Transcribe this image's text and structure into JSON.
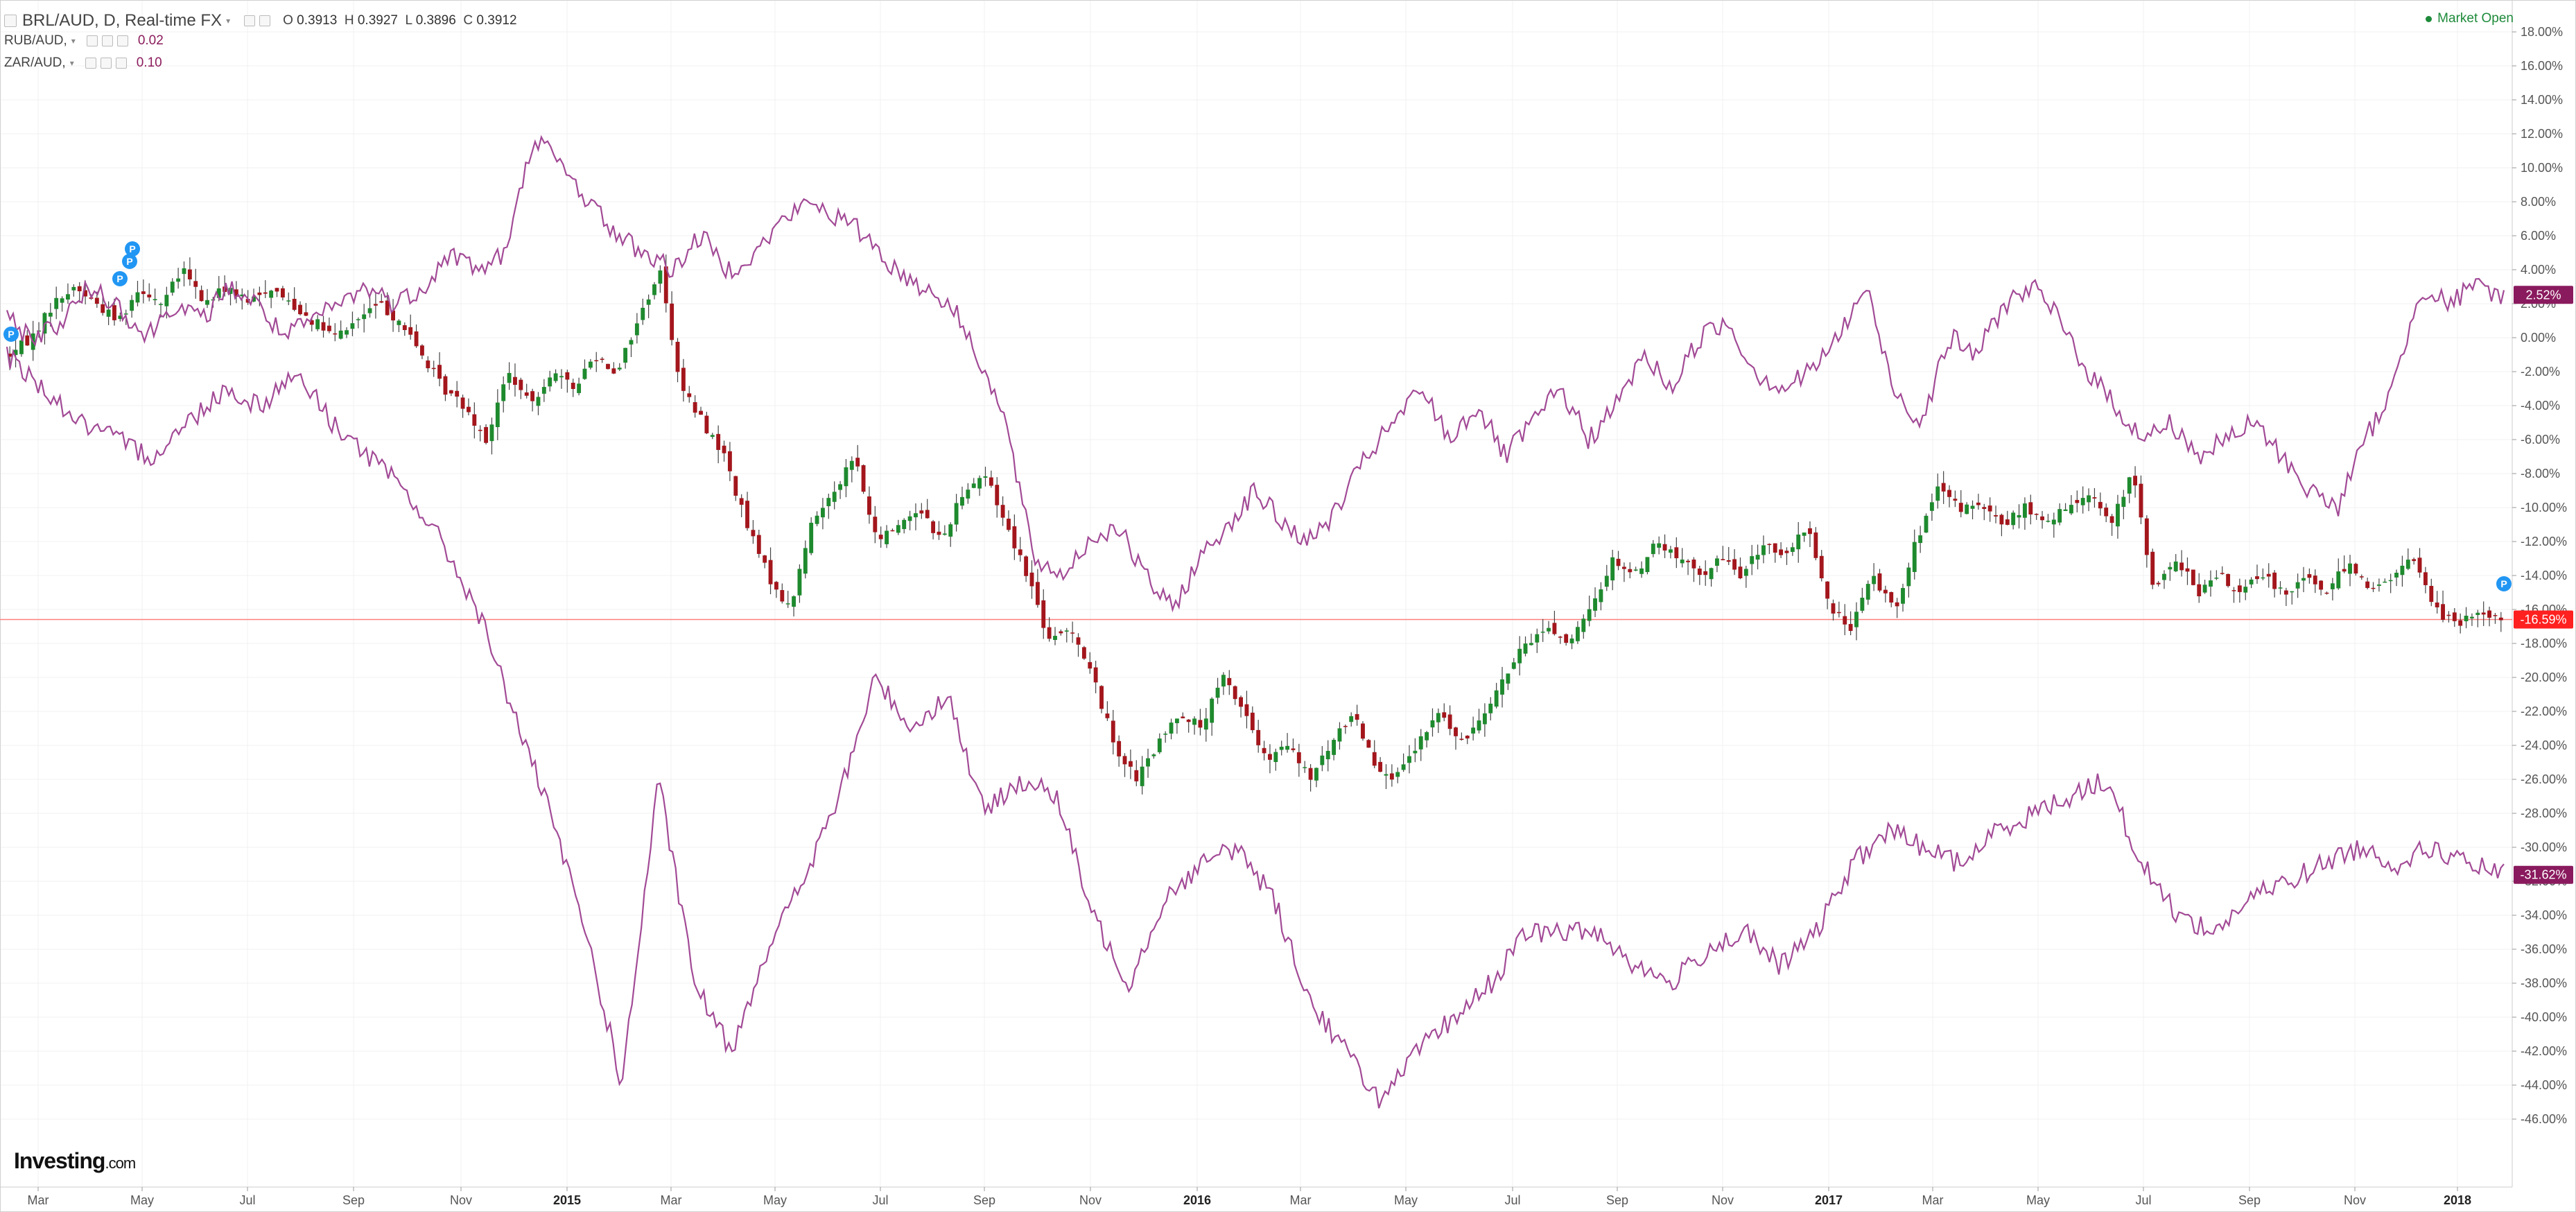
{
  "header": {
    "main_symbol": "BRL/AUD, D, Real-time FX",
    "ohlc": {
      "o_label": "O",
      "o": "0.3913",
      "h_label": "H",
      "h": "0.3927",
      "l_label": "L",
      "l": "0.3896",
      "c_label": "C",
      "c": "0.3912"
    },
    "compare": [
      {
        "symbol": "RUB/AUD,",
        "value": "0.02"
      },
      {
        "symbol": "ZAR/AUD,",
        "value": "0.10"
      }
    ],
    "market_status": "Market Open"
  },
  "logo": {
    "bold": "Investing",
    "suffix": ".com"
  },
  "colors": {
    "up": "#1e8a2e",
    "down": "#a3161c",
    "compare": "#a24a96",
    "last_red": "#ff2020",
    "badge_purple": "#8a1a5e",
    "wick": "#444444"
  },
  "icons": [
    "collapse-square-icon",
    "eye-icon",
    "gear-icon",
    "close-icon",
    "dropdown-caret-icon",
    "p-marker-icon"
  ],
  "chart_data": {
    "type": "line",
    "description_free": true,
    "x_tick_labels": [
      "Mar",
      "May",
      "Jul",
      "Sep",
      "Nov",
      "2015",
      "Mar",
      "May",
      "Jul",
      "Sep",
      "Nov",
      "2016",
      "Mar",
      "May",
      "Jul",
      "Sep",
      "Nov",
      "2017",
      "Mar",
      "May",
      "Jul",
      "Sep",
      "Nov",
      "2018"
    ],
    "x_tick_bold": [
      "2015",
      "2016",
      "2017",
      "2018"
    ],
    "y_unit": "%",
    "ylim": [
      -47,
      19
    ],
    "y_ticks": [
      18,
      16,
      14,
      12,
      10,
      8,
      6,
      4,
      2,
      0,
      -2,
      -4,
      -6,
      -8,
      -10,
      -12,
      -14,
      -16,
      -18,
      -20,
      -22,
      -24,
      -26,
      -28,
      -30,
      -32,
      -34,
      -36,
      -38,
      -40,
      -42,
      -44,
      -46
    ],
    "y_tick_labels": [
      "18.00%",
      "16.00%",
      "14.00%",
      "12.00%",
      "10.00%",
      "8.00%",
      "6.00%",
      "4.00%",
      "2.00%",
      "0.00%",
      "-2.00%",
      "-4.00%",
      "-6.00%",
      "-8.00%",
      "-10.00%",
      "-12.00%",
      "-14.00%",
      "-16.00%",
      "-18.00%",
      "-20.00%",
      "-22.00%",
      "-24.00%",
      "-26.00%",
      "-28.00%",
      "-30.00%",
      "-32.00%",
      "-34.00%",
      "-36.00%",
      "-38.00%",
      "-40.00%",
      "-42.00%",
      "-44.00%",
      "-46.00%"
    ],
    "grid": true,
    "price_line_value": -16.59,
    "series": [
      {
        "style": "candlestick",
        "last_label": "-16.59%",
        "anchors": [
          [
            0,
            -1
          ],
          [
            1,
            0
          ],
          [
            2,
            2
          ],
          [
            3,
            3
          ],
          [
            4,
            2
          ],
          [
            5,
            1
          ],
          [
            6,
            3
          ],
          [
            7,
            2
          ],
          [
            8,
            4
          ],
          [
            9,
            2
          ],
          [
            10,
            3
          ],
          [
            11,
            2
          ],
          [
            12,
            3
          ],
          [
            13,
            2
          ],
          [
            14,
            1
          ],
          [
            15,
            0
          ],
          [
            16,
            1
          ],
          [
            17,
            2
          ],
          [
            18,
            1
          ],
          [
            19,
            -1
          ],
          [
            20,
            -3
          ],
          [
            21,
            -4
          ],
          [
            22,
            -6
          ],
          [
            23,
            -2
          ],
          [
            24,
            -4
          ],
          [
            25,
            -2
          ],
          [
            26,
            -3
          ],
          [
            27,
            -1
          ],
          [
            28,
            -2
          ],
          [
            29,
            1
          ],
          [
            30,
            4
          ],
          [
            31,
            -3
          ],
          [
            32,
            -5
          ],
          [
            33,
            -7
          ],
          [
            34,
            -11
          ],
          [
            35,
            -14
          ],
          [
            36,
            -16
          ],
          [
            37,
            -11
          ],
          [
            38,
            -9
          ],
          [
            39,
            -7
          ],
          [
            40,
            -12
          ],
          [
            41,
            -11
          ],
          [
            42,
            -10
          ],
          [
            43,
            -12
          ],
          [
            44,
            -9
          ],
          [
            45,
            -8
          ],
          [
            46,
            -11
          ],
          [
            47,
            -14
          ],
          [
            48,
            -18
          ],
          [
            49,
            -17
          ],
          [
            50,
            -20
          ],
          [
            51,
            -24
          ],
          [
            52,
            -26
          ],
          [
            53,
            -24
          ],
          [
            54,
            -22
          ],
          [
            55,
            -23
          ],
          [
            56,
            -20
          ],
          [
            57,
            -22
          ],
          [
            58,
            -25
          ],
          [
            59,
            -24
          ],
          [
            60,
            -26
          ],
          [
            61,
            -24
          ],
          [
            62,
            -22
          ],
          [
            63,
            -25
          ],
          [
            64,
            -26
          ],
          [
            65,
            -24
          ],
          [
            66,
            -22
          ],
          [
            67,
            -24
          ],
          [
            68,
            -22
          ],
          [
            69,
            -20
          ],
          [
            70,
            -18
          ],
          [
            71,
            -17
          ],
          [
            72,
            -18
          ],
          [
            73,
            -16
          ],
          [
            74,
            -13
          ],
          [
            75,
            -14
          ],
          [
            76,
            -12
          ],
          [
            77,
            -13
          ],
          [
            78,
            -14
          ],
          [
            79,
            -13
          ],
          [
            80,
            -14
          ],
          [
            81,
            -12
          ],
          [
            82,
            -13
          ],
          [
            83,
            -11
          ],
          [
            84,
            -16
          ],
          [
            85,
            -17
          ],
          [
            86,
            -14
          ],
          [
            87,
            -16
          ],
          [
            88,
            -12
          ],
          [
            89,
            -9
          ],
          [
            90,
            -10
          ],
          [
            91,
            -10
          ],
          [
            92,
            -11
          ],
          [
            93,
            -10
          ],
          [
            94,
            -11
          ],
          [
            95,
            -10
          ],
          [
            96,
            -9
          ],
          [
            97,
            -11
          ],
          [
            98,
            -8
          ],
          [
            99,
            -15
          ],
          [
            100,
            -13
          ],
          [
            101,
            -15
          ],
          [
            102,
            -14
          ],
          [
            103,
            -15
          ],
          [
            104,
            -14
          ],
          [
            105,
            -15
          ],
          [
            106,
            -14
          ],
          [
            107,
            -15
          ],
          [
            108,
            -13
          ],
          [
            109,
            -15
          ],
          [
            110,
            -14
          ],
          [
            111,
            -13
          ],
          [
            112,
            -16
          ],
          [
            113,
            -17
          ],
          [
            114,
            -16
          ],
          [
            115,
            -16.6
          ]
        ]
      },
      {
        "style": "line",
        "last_label": "2.52%",
        "anchors": [
          [
            0,
            1
          ],
          [
            1,
            0
          ],
          [
            2,
            1
          ],
          [
            3,
            3
          ],
          [
            4,
            2
          ],
          [
            5,
            0
          ],
          [
            6,
            2
          ],
          [
            7,
            1
          ],
          [
            8,
            3
          ],
          [
            9,
            2
          ],
          [
            10,
            0
          ],
          [
            11,
            1
          ],
          [
            12,
            2
          ],
          [
            13,
            3
          ],
          [
            14,
            2
          ],
          [
            15,
            3
          ],
          [
            16,
            5
          ],
          [
            17,
            4
          ],
          [
            18,
            5
          ],
          [
            19,
            12
          ],
          [
            20,
            10
          ],
          [
            21,
            8
          ],
          [
            22,
            6
          ],
          [
            23,
            5
          ],
          [
            24,
            4
          ],
          [
            25,
            6
          ],
          [
            26,
            4
          ],
          [
            27,
            5
          ],
          [
            28,
            7
          ],
          [
            29,
            8
          ],
          [
            30,
            7
          ],
          [
            31,
            6
          ],
          [
            32,
            4
          ],
          [
            33,
            3
          ],
          [
            34,
            2
          ],
          [
            35,
            -1
          ],
          [
            36,
            -5
          ],
          [
            37,
            -13
          ],
          [
            38,
            -14
          ],
          [
            39,
            -12
          ],
          [
            40,
            -11
          ],
          [
            41,
            -14
          ],
          [
            42,
            -16
          ],
          [
            43,
            -13
          ],
          [
            44,
            -11
          ],
          [
            45,
            -9
          ],
          [
            46,
            -11
          ],
          [
            47,
            -12
          ],
          [
            48,
            -10
          ],
          [
            49,
            -7
          ],
          [
            50,
            -5
          ],
          [
            51,
            -3
          ],
          [
            52,
            -6
          ],
          [
            53,
            -4
          ],
          [
            54,
            -7
          ],
          [
            55,
            -5
          ],
          [
            56,
            -3
          ],
          [
            57,
            -6
          ],
          [
            58,
            -4
          ],
          [
            59,
            -1
          ],
          [
            60,
            -3
          ],
          [
            61,
            0
          ],
          [
            62,
            1
          ],
          [
            63,
            -2
          ],
          [
            64,
            -3
          ],
          [
            65,
            -2
          ],
          [
            66,
            0
          ],
          [
            67,
            3
          ],
          [
            68,
            -3
          ],
          [
            69,
            -5
          ],
          [
            70,
            0
          ],
          [
            71,
            -1
          ],
          [
            72,
            2
          ],
          [
            73,
            3
          ],
          [
            74,
            1
          ],
          [
            75,
            -2
          ],
          [
            76,
            -4
          ],
          [
            77,
            -6
          ],
          [
            78,
            -5
          ],
          [
            79,
            -7
          ],
          [
            80,
            -6
          ],
          [
            81,
            -5
          ],
          [
            82,
            -7
          ],
          [
            83,
            -9
          ],
          [
            84,
            -10
          ],
          [
            85,
            -6
          ],
          [
            86,
            -3
          ],
          [
            87,
            3
          ],
          [
            88,
            2
          ],
          [
            89,
            3
          ],
          [
            90,
            2.5
          ]
        ]
      },
      {
        "style": "line",
        "last_label": "-31.62%",
        "anchors": [
          [
            0,
            -1
          ],
          [
            1,
            -3
          ],
          [
            2,
            -5
          ],
          [
            3,
            -6
          ],
          [
            4,
            -7
          ],
          [
            5,
            -5
          ],
          [
            6,
            -3
          ],
          [
            7,
            -4
          ],
          [
            8,
            -2
          ],
          [
            9,
            -5
          ],
          [
            10,
            -7
          ],
          [
            11,
            -9
          ],
          [
            12,
            -12
          ],
          [
            13,
            -16
          ],
          [
            14,
            -22
          ],
          [
            15,
            -28
          ],
          [
            16,
            -35
          ],
          [
            17,
            -44
          ],
          [
            18,
            -26
          ],
          [
            19,
            -38
          ],
          [
            20,
            -42
          ],
          [
            21,
            -36
          ],
          [
            22,
            -32
          ],
          [
            23,
            -27
          ],
          [
            24,
            -20
          ],
          [
            25,
            -23
          ],
          [
            26,
            -21
          ],
          [
            27,
            -28
          ],
          [
            28,
            -26
          ],
          [
            29,
            -27
          ],
          [
            30,
            -34
          ],
          [
            31,
            -38
          ],
          [
            32,
            -33
          ],
          [
            33,
            -31
          ],
          [
            34,
            -30
          ],
          [
            35,
            -33
          ],
          [
            36,
            -39
          ],
          [
            37,
            -42
          ],
          [
            38,
            -45
          ],
          [
            39,
            -42
          ],
          [
            40,
            -40
          ],
          [
            41,
            -38
          ],
          [
            42,
            -35
          ],
          [
            43,
            -35
          ],
          [
            44,
            -35
          ],
          [
            45,
            -37
          ],
          [
            46,
            -38
          ],
          [
            47,
            -36
          ],
          [
            48,
            -35
          ],
          [
            49,
            -37
          ],
          [
            50,
            -35
          ],
          [
            51,
            -31
          ],
          [
            52,
            -29
          ],
          [
            53,
            -30
          ],
          [
            54,
            -31
          ],
          [
            55,
            -29
          ],
          [
            56,
            -28
          ],
          [
            57,
            -27
          ],
          [
            58,
            -26
          ],
          [
            59,
            -31
          ],
          [
            60,
            -34
          ],
          [
            61,
            -35
          ],
          [
            62,
            -33
          ],
          [
            63,
            -32
          ],
          [
            64,
            -31
          ],
          [
            65,
            -30
          ],
          [
            66,
            -31
          ],
          [
            67,
            -30
          ],
          [
            68,
            -31
          ],
          [
            69,
            -31.6
          ]
        ]
      }
    ]
  }
}
